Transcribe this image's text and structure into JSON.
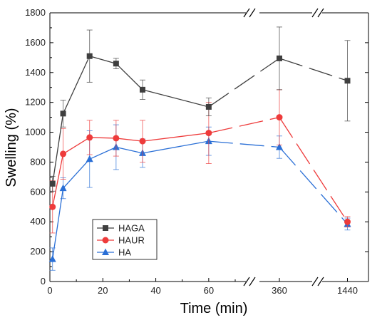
{
  "chart_data": {
    "type": "line",
    "title": "",
    "xlabel": "Time (min)",
    "ylabel": "Swelling (%)",
    "ylim": [
      0,
      1800
    ],
    "y_ticks": [
      0,
      200,
      400,
      600,
      800,
      1000,
      1200,
      1400,
      1600,
      1800
    ],
    "x_scale": "broken",
    "x_segments": [
      {
        "range": [
          0,
          70
        ],
        "ticks": [
          0,
          20,
          40,
          60
        ]
      },
      {
        "range": [
          340,
          380
        ],
        "ticks": [
          360
        ]
      },
      {
        "range": [
          1400,
          1480
        ],
        "ticks": [
          1440
        ]
      }
    ],
    "x_tick_labels": [
      "0",
      "20",
      "40",
      "60",
      "360",
      "1440"
    ],
    "x": [
      1,
      5,
      15,
      25,
      35,
      60,
      360,
      1440
    ],
    "legend_position": "bottom-left",
    "grid": false,
    "series": [
      {
        "name": "HAGA",
        "color": "#3f3f3f",
        "marker": "square",
        "values": [
          655,
          1125,
          1510,
          1460,
          1285,
          1170,
          1495,
          1345
        ],
        "errors": [
          50,
          90,
          175,
          35,
          65,
          60,
          210,
          270
        ]
      },
      {
        "name": "HAUR",
        "color": "#ee3b3b",
        "marker": "circle",
        "values": [
          500,
          855,
          965,
          960,
          940,
          995,
          1100,
          400
        ],
        "errors": [
          175,
          170,
          115,
          120,
          140,
          205,
          185,
          35
        ]
      },
      {
        "name": "HA",
        "color": "#2a6fd6",
        "marker": "triangle",
        "values": [
          150,
          625,
          820,
          900,
          860,
          940,
          900,
          385
        ],
        "errors": [
          75,
          70,
          190,
          150,
          95,
          95,
          75,
          40
        ]
      }
    ]
  }
}
